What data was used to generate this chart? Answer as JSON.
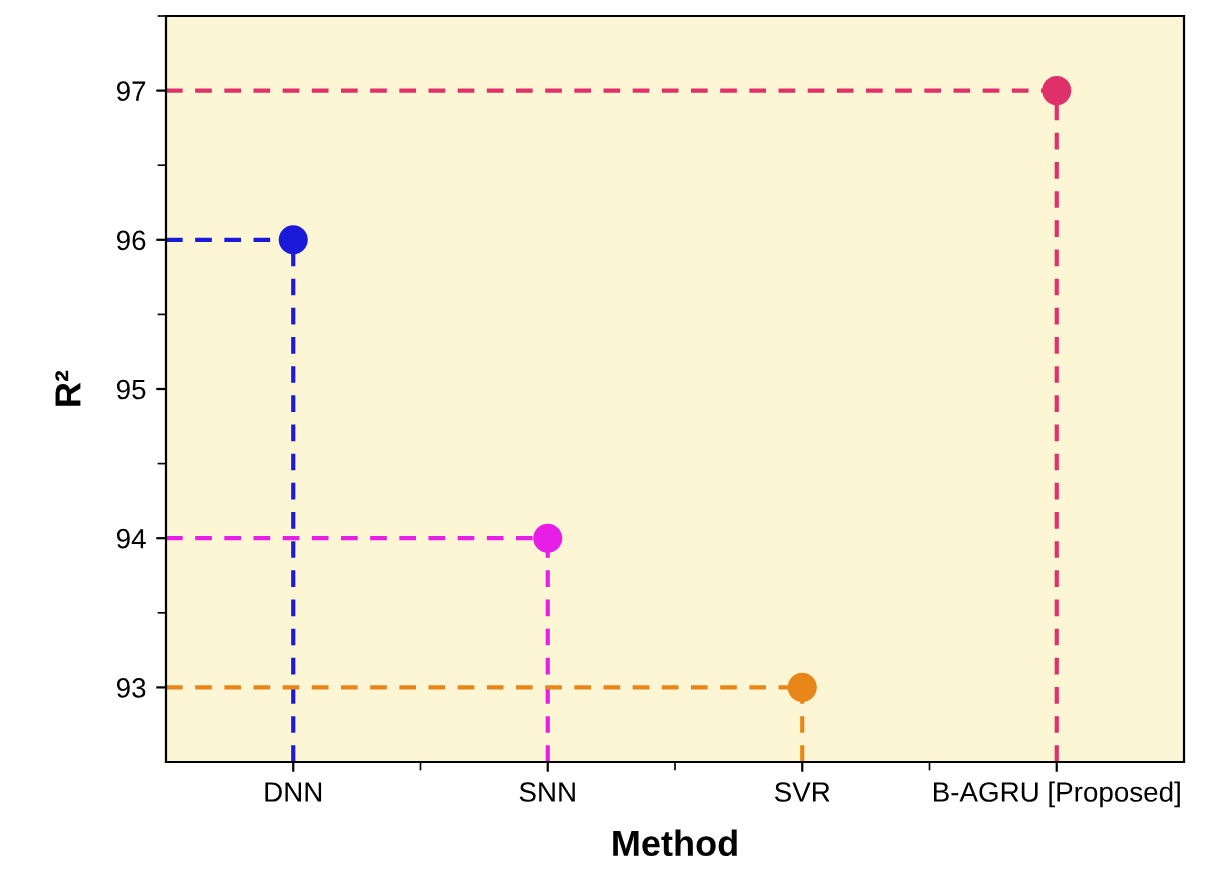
{
  "chart_data": {
    "type": "lollipop",
    "xlabel": "Method",
    "ylabel": "R²",
    "categories": [
      "DNN",
      "SNN",
      "SVR",
      "B-AGRU [Proposed]"
    ],
    "series": [
      {
        "values": [
          96,
          94,
          93,
          97
        ],
        "colors": [
          "#1a1ad8",
          "#e61ee6",
          "#e8861a",
          "#e0306a"
        ]
      }
    ],
    "ylim": [
      92.5,
      97.5
    ],
    "yticks": [
      93,
      94,
      95,
      96,
      97
    ],
    "ref_lines": [
      {
        "axis": "y",
        "value": 96,
        "color": "#1a1ad8",
        "line_style": "dashed"
      },
      {
        "axis": "y",
        "value": 94,
        "color": "#e61ee6",
        "line_style": "dashed"
      },
      {
        "axis": "y",
        "value": 93,
        "color": "#e8861a",
        "line_style": "dashed"
      },
      {
        "axis": "y",
        "value": 97,
        "color": "#e0306a",
        "line_style": "dashed"
      }
    ],
    "marker": "circle",
    "line_style": "dashed"
  }
}
